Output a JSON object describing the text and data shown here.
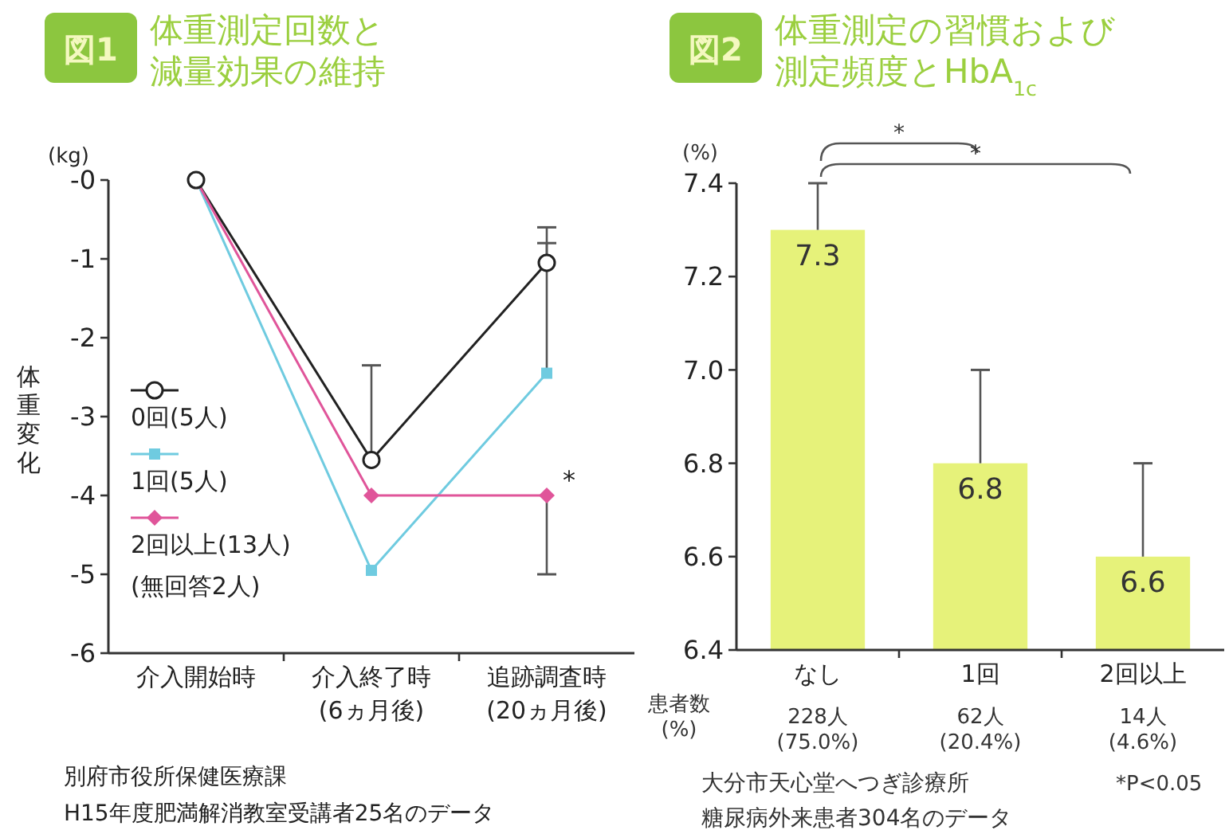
{
  "chart_data": [
    {
      "type": "line",
      "title": "図1",
      "subtitle": "体重測定回数と減量効果の維持",
      "ylabel": "体重変化",
      "categories": [
        "介入開始時",
        "介入終了時\n(6ヵ月後)",
        "追跡調査時\n(20ヵ月後)"
      ],
      "ylim": [
        -6,
        0
      ],
      "yticks": [
        {
          "value": 0,
          "label": "-0"
        },
        -1,
        -2,
        -3,
        -4,
        -5,
        -6
      ],
      "legend": "left",
      "series": [
        {
          "name": "0回(5人)",
          "color": "#222222",
          "marker": "circle",
          "values": [
            0,
            -3.55,
            -1.05
          ],
          "errors": [
            null,
            [
              -3.55,
              -2.35
            ],
            [
              -1.05,
              -0.6
            ]
          ]
        },
        {
          "name": "1回(5人)",
          "color": "#6fcbe0",
          "marker": "square",
          "values": [
            0,
            -4.95,
            -2.45
          ],
          "errors": [
            null,
            null,
            [
              -2.45,
              -0.8
            ]
          ]
        },
        {
          "name": "2回以上(13人)",
          "color": "#e0559a",
          "marker": "diamond",
          "values": [
            0,
            -4.0,
            -4.0
          ],
          "errors": [
            null,
            null,
            [
              -5,
              -4
            ]
          ]
        }
      ],
      "annotations": [
        "(kg)",
        "(無回答2人)",
        {
          "text": "*",
          "x": "追跡調査時\n(20ヵ月後)",
          "y": -4.0
        },
        "別府市役所保健医療課",
        "H15年度肥満解消教室受講者25名のデータ"
      ]
    },
    {
      "type": "bar",
      "title": "図2",
      "subtitle": "体重測定の習慣および測定頻度とHbA$_{1c}$",
      "categories": [
        "なし",
        "1回",
        "2回以上"
      ],
      "values": [
        7.3,
        6.8,
        6.6
      ],
      "color": "#e6f27a",
      "errors": [
        [
          7.3,
          7.4
        ],
        [
          6.8,
          7.0
        ],
        [
          6.6,
          6.8
        ]
      ],
      "data_labels": true,
      "ylim": [
        6.4,
        7.4
      ],
      "yticks": [
        {
          "value": 6.4,
          "label": "6.4"
        },
        {
          "value": 6.6,
          "label": "6.6"
        },
        {
          "value": 6.8,
          "label": "6.8"
        },
        {
          "value": 7.0,
          "label": "7.0"
        },
        {
          "value": 7.2,
          "label": "7.2"
        },
        {
          "value": 7.4,
          "label": "7.4"
        }
      ],
      "annotations": [
        "(%)",
        "*",
        "*",
        "患者数\n(%)",
        "228人\n(75.0%)",
        "62人\n(20.4%)",
        "14人\n(4.6%)",
        "*P<0.05",
        "大分市天心堂へつぎ診療所",
        "糖尿病外来患者304名のデータ"
      ]
    }
  ]
}
